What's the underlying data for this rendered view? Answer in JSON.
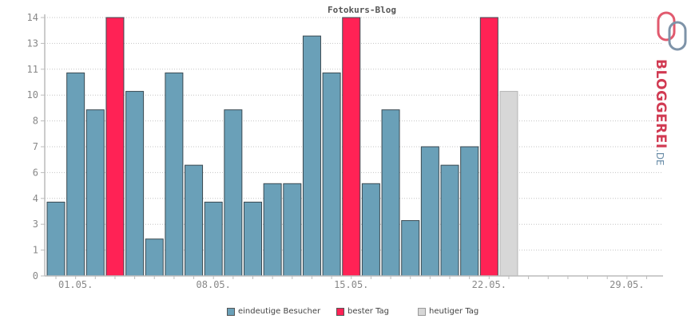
{
  "chart_data": {
    "type": "bar",
    "title": "Fotokurs-Blog",
    "x": [
      "30.04.",
      "01.05.",
      "02.05.",
      "03.05.",
      "04.05.",
      "05.05.",
      "06.05.",
      "07.05.",
      "08.05.",
      "09.05.",
      "10.05.",
      "11.05.",
      "12.05.",
      "13.05.",
      "14.05.",
      "15.05.",
      "16.05.",
      "17.05.",
      "18.05.",
      "19.05.",
      "20.05.",
      "21.05.",
      "22.05.",
      "23.05."
    ],
    "series": [
      {
        "name": "eindeutige Besucher",
        "values": [
          4,
          11,
          9,
          14,
          10,
          2,
          11,
          6,
          4,
          9,
          4,
          5,
          5,
          13,
          11,
          14,
          5,
          9,
          3,
          7,
          6,
          7,
          14,
          10
        ]
      }
    ],
    "best_day_indices": [
      3,
      15,
      22
    ],
    "today_index": 23,
    "x_tick_labels": [
      "01.05.",
      "08.05.",
      "15.05.",
      "22.05.",
      "29.05."
    ],
    "y_tick_labels": [
      "0",
      "1",
      "3",
      "4",
      "6",
      "7",
      "8",
      "10",
      "11",
      "13",
      "14"
    ],
    "ylim": [
      0,
      14
    ],
    "grid": true,
    "legend_position": "bottom",
    "legend": [
      {
        "label": "eindeutige Besucher",
        "color": "#6aa0b8"
      },
      {
        "label": "bester Tag",
        "color": "#ff2255"
      },
      {
        "label": "heutiger Tag",
        "color": "#d7d7d7"
      }
    ],
    "colors": {
      "normal": "#6aa0b8",
      "best": "#ff2255",
      "today": "#d7d7d7",
      "outline": "#3b4a52"
    }
  },
  "logo": {
    "text": "BLOGGEREI",
    "suffix": ".DE",
    "color": "#d13a52",
    "suffix_color": "#6a8da8"
  }
}
